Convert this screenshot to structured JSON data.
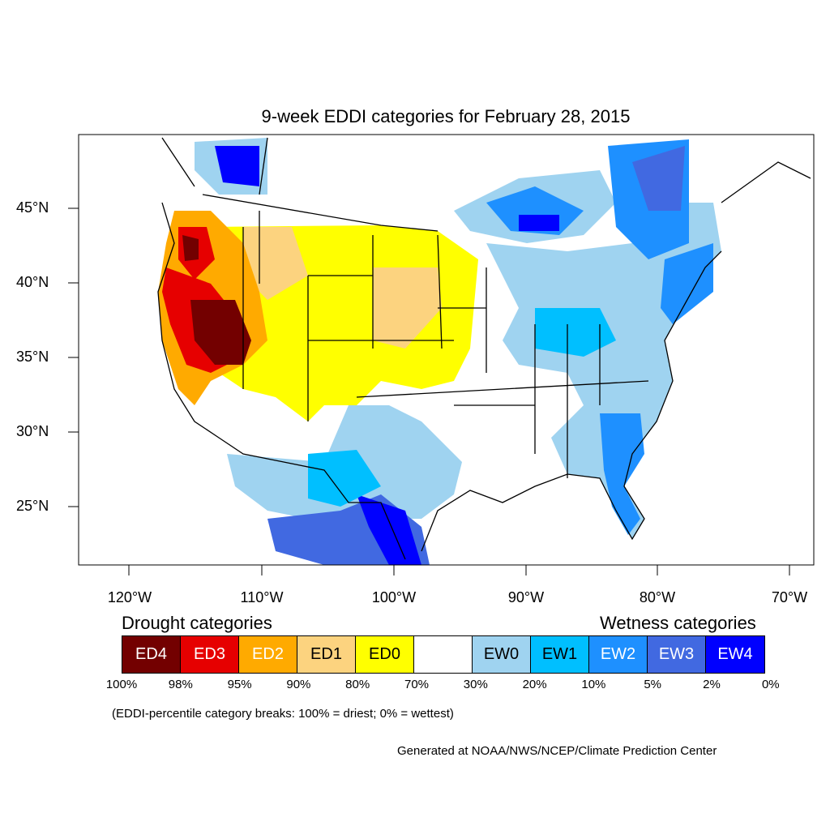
{
  "map": {
    "title": "9-week EDDI categories for February 28, 2015",
    "lat_labels": [
      "45°N",
      "40°N",
      "35°N",
      "30°N",
      "25°N"
    ],
    "lon_labels": [
      "120°W",
      "110°W",
      "100°W",
      "90°W",
      "80°W",
      "70°W"
    ]
  },
  "legend": {
    "drought_heading": "Drought categories",
    "wetness_heading": "Wetness categories",
    "categories": [
      {
        "label": "ED4",
        "color": "#730000",
        "text_color": "#ffffff"
      },
      {
        "label": "ED3",
        "color": "#e60000",
        "text_color": "#ffffff"
      },
      {
        "label": "ED2",
        "color": "#ffaa00",
        "text_color": "#ffffff"
      },
      {
        "label": "ED1",
        "color": "#fcd37f",
        "text_color": "#000000"
      },
      {
        "label": "ED0",
        "color": "#ffff00",
        "text_color": "#000000"
      },
      {
        "label": "",
        "color": "#ffffff",
        "text_color": "#000000"
      },
      {
        "label": "EW0",
        "color": "#9fd3f0",
        "text_color": "#000000"
      },
      {
        "label": "EW1",
        "color": "#00bfff",
        "text_color": "#000000"
      },
      {
        "label": "EW2",
        "color": "#1e90ff",
        "text_color": "#ffffff"
      },
      {
        "label": "EW3",
        "color": "#4169e1",
        "text_color": "#ffffff"
      },
      {
        "label": "EW4",
        "color": "#0000ff",
        "text_color": "#ffffff"
      }
    ],
    "breaks": [
      "100%",
      "98%",
      "95%",
      "90%",
      "80%",
      "70%",
      "30%",
      "20%",
      "10%",
      "5%",
      "2%",
      "0%"
    ],
    "note": "(EDDI-percentile category breaks: 100% = driest; 0% = wettest)"
  },
  "credit": "Generated at NOAA/NWS/NCEP/Climate Prediction Center"
}
